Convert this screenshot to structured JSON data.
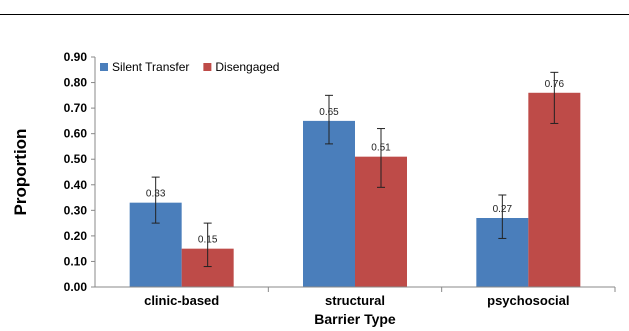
{
  "chart_data": {
    "type": "bar",
    "title": "",
    "xlabel": "Barrier Type",
    "ylabel": "Proportion",
    "categories": [
      "clinic-based",
      "structural",
      "psychosocial"
    ],
    "ylim": [
      0,
      0.9
    ],
    "yticks": [
      "0.00",
      "0.10",
      "0.20",
      "0.30",
      "0.40",
      "0.50",
      "0.60",
      "0.70",
      "0.80",
      "0.90"
    ],
    "legend_position": "top-left",
    "grid": false,
    "series": [
      {
        "name": "Silent Transfer",
        "color": "#4a7ebb",
        "values": [
          0.33,
          0.65,
          0.27
        ],
        "labels": [
          "0.33",
          "0.65",
          "0.27"
        ],
        "error_low": [
          0.25,
          0.56,
          0.19
        ],
        "error_high": [
          0.43,
          0.75,
          0.36
        ]
      },
      {
        "name": "Disengaged",
        "color": "#be4b48",
        "values": [
          0.15,
          0.51,
          0.76
        ],
        "labels": [
          "0.15",
          "0.51",
          "0.76"
        ],
        "error_low": [
          0.08,
          0.39,
          0.64
        ],
        "error_high": [
          0.25,
          0.62,
          0.84
        ]
      }
    ]
  }
}
